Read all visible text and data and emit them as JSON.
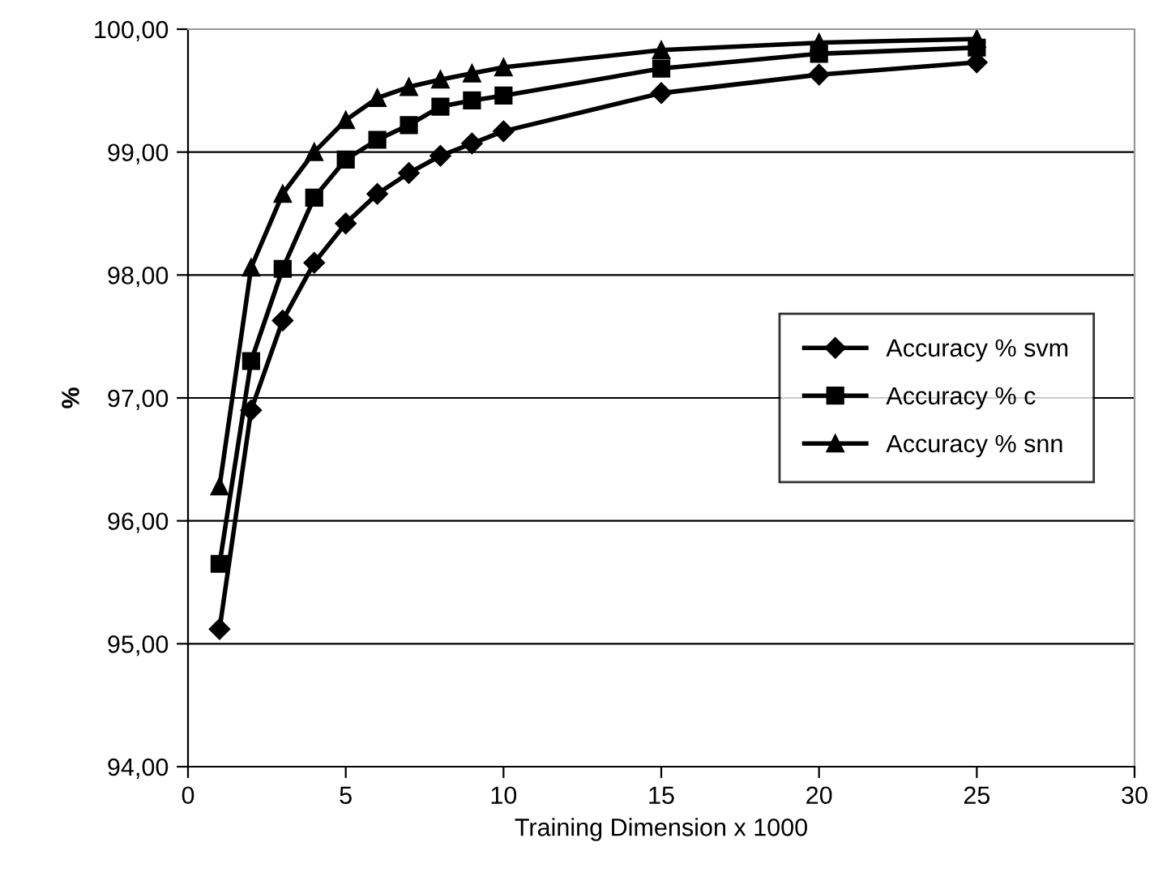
{
  "chart_data": {
    "type": "line",
    "xlabel": "Training Dimension x 1000",
    "ylabel": "%",
    "x": [
      1,
      2,
      3,
      4,
      5,
      6,
      7,
      8,
      9,
      10,
      15,
      20,
      25
    ],
    "series": [
      {
        "name": "Accuracy % svm",
        "color": "#000000",
        "marker": "diamond",
        "values": [
          95.12,
          96.9,
          97.63,
          98.1,
          98.42,
          98.66,
          98.83,
          98.97,
          99.07,
          99.17,
          99.48,
          99.63,
          99.73
        ]
      },
      {
        "name": "Accuracy % c",
        "color": "#000000",
        "marker": "square",
        "values": [
          95.65,
          97.3,
          98.05,
          98.63,
          98.94,
          99.1,
          99.22,
          99.37,
          99.42,
          99.46,
          99.68,
          99.8,
          99.85
        ]
      },
      {
        "name": "Accuracy % snn",
        "color": "#000000",
        "marker": "triangle",
        "values": [
          96.28,
          98.06,
          98.66,
          99.0,
          99.26,
          99.44,
          99.53,
          99.59,
          99.64,
          99.69,
          99.83,
          99.89,
          99.92
        ]
      }
    ],
    "xlim": [
      0,
      30
    ],
    "xticks": [
      0,
      5,
      10,
      15,
      20,
      25,
      30
    ],
    "ylim": [
      94,
      100
    ],
    "yticks": [
      {
        "value": 94,
        "label": "94,00"
      },
      {
        "value": 95,
        "label": "95,00"
      },
      {
        "value": 96,
        "label": "96,00"
      },
      {
        "value": 97,
        "label": "97,00"
      },
      {
        "value": 98,
        "label": "98,00"
      },
      {
        "value": 99,
        "label": "99,00"
      },
      {
        "value": 100,
        "label": "100,00"
      }
    ],
    "grid": "y",
    "legend": "right",
    "line_style": "solid"
  }
}
